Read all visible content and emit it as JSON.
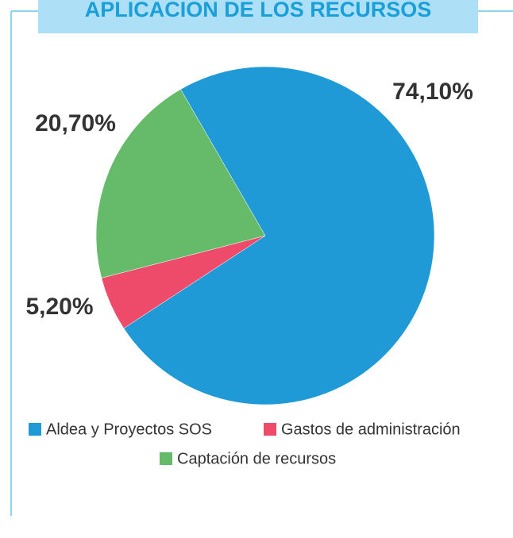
{
  "chart_data": {
    "type": "pie",
    "title": "APLICACION DE LOS RECURSOS",
    "categories": [
      "Aldea y Proyectos SOS",
      "Gastos de administración",
      "Captación de recursos"
    ],
    "values": [
      74.1,
      5.2,
      20.7
    ],
    "value_labels": [
      "74,10%",
      "5,20%",
      "20,70%"
    ],
    "colors": [
      "#1f9ad6",
      "#ee4a6a",
      "#66bb6a"
    ],
    "legend": "bottom"
  }
}
